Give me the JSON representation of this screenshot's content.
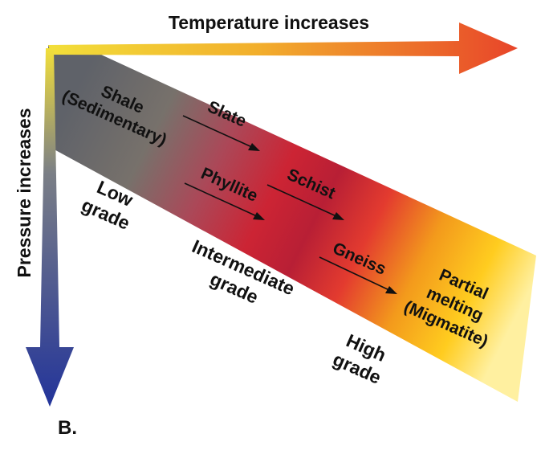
{
  "axes": {
    "temperature_label": "Temperature increases",
    "pressure_label": "Pressure increases"
  },
  "grades": {
    "low": [
      "Low",
      "grade"
    ],
    "intermediate": [
      "Intermediate",
      "grade"
    ],
    "high": [
      "High",
      "grade"
    ]
  },
  "rocks": {
    "shale": [
      "Shale",
      "(Sedimentary)"
    ],
    "slate": "Slate",
    "phyllite": "Phyllite",
    "schist": "Schist",
    "gneiss": "Gneiss",
    "partial_melting": [
      "Partial",
      "melting",
      "(Migmatite)"
    ]
  },
  "panel_label": "B.",
  "colors": {
    "low_grade": "#5f6269",
    "intermediate_grade": "#c6283a",
    "high_grade": "#f39a1c",
    "partial_melting": "#ffd21f",
    "temperature_arrow_start": "#f2df3a",
    "temperature_arrow_end": "#e8452a",
    "pressure_arrow_start": "#f2df3a",
    "pressure_arrow_end": "#23349a"
  }
}
